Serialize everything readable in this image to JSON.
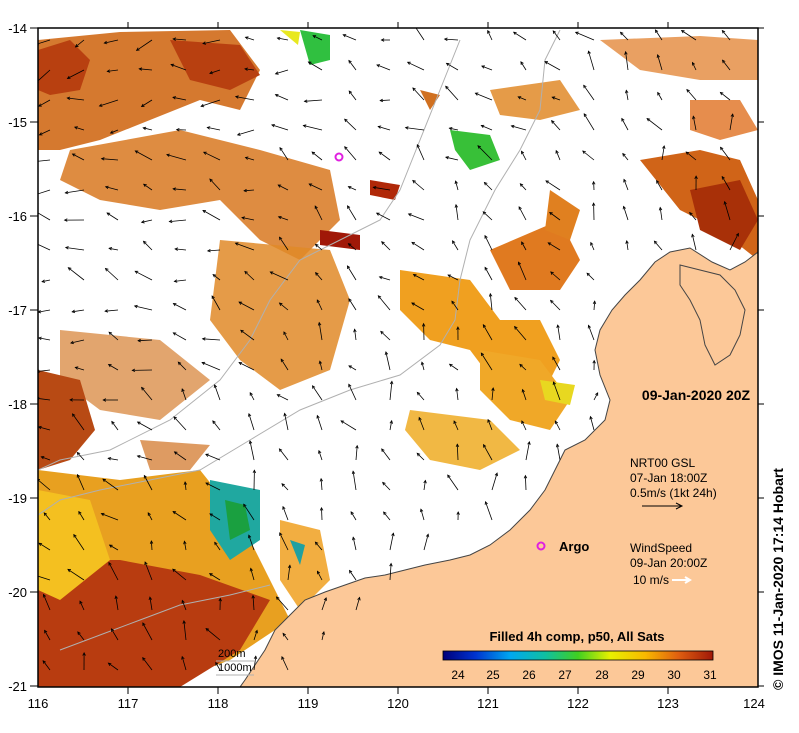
{
  "map": {
    "date_label": "09-Jan-2020 20Z",
    "credit": "© IMOS 11-Jan-2020 17:14 Hobart",
    "lat_ticks": [
      "-14",
      "-15",
      "-16",
      "-17",
      "-18",
      "-19",
      "-20",
      "-21"
    ],
    "lon_ticks": [
      "116",
      "117",
      "118",
      "119",
      "120",
      "121",
      "122",
      "123",
      "124"
    ],
    "current_legend": {
      "title": "NRT00 GSL",
      "time": "07-Jan 18:00Z",
      "scale": "0.5m/s (1kt 24h)"
    },
    "wind_legend": {
      "title": "WindSpeed",
      "time": "09-Jan 20:00Z",
      "scale": "10 m/s"
    },
    "argo_label": "Argo",
    "isobaths": [
      "200m",
      "1000m"
    ],
    "colorbar": {
      "title": "Filled 4h comp, p50, All Sats",
      "ticks": [
        "24",
        "25",
        "26",
        "27",
        "28",
        "29",
        "30",
        "31"
      ]
    },
    "colors": {
      "land": "#fcc898",
      "coast": "#444444",
      "isobath": "#b0b0b0",
      "argo": "#e020e0"
    }
  }
}
